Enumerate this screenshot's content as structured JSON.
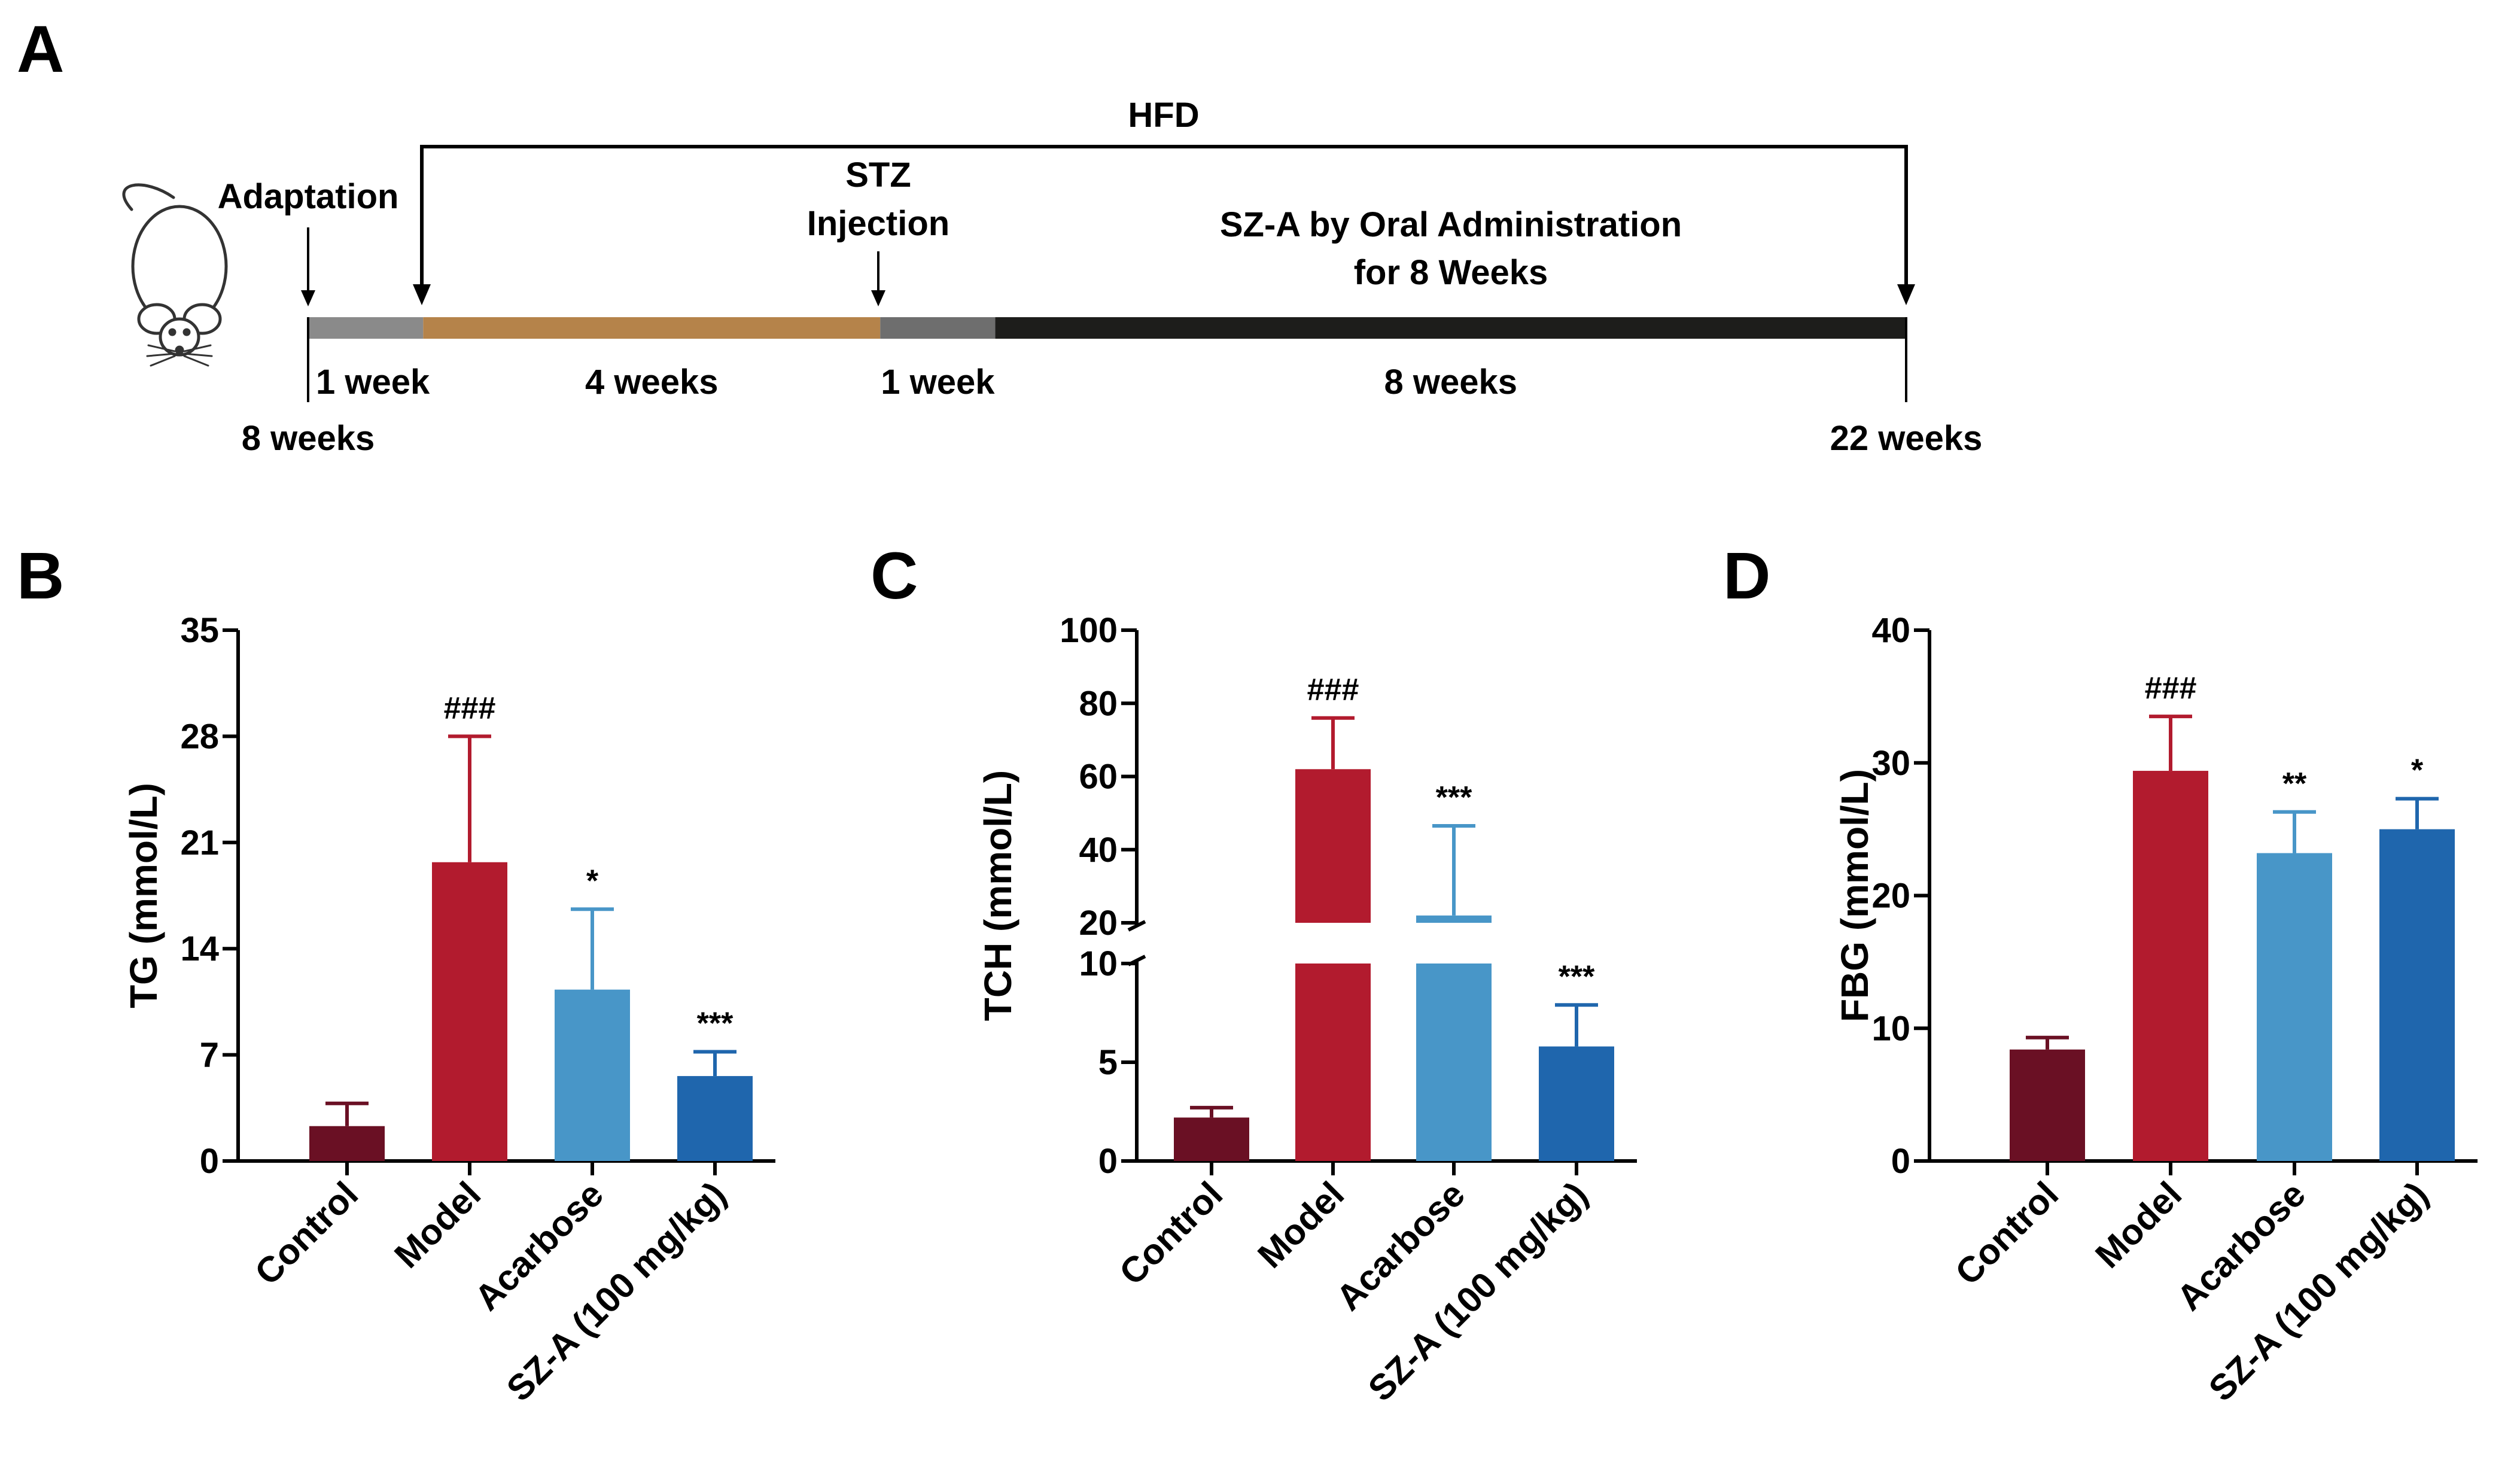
{
  "panel_a": {
    "letter": "A",
    "hfd_label": "HFD",
    "adaptation_label": "Adaptation",
    "stz_label_1": "STZ",
    "stz_label_2": "Injection",
    "sza_label_1": "SZ-A by Oral Administration",
    "sza_label_2": "for 8 Weeks",
    "segments": [
      {
        "label": "1 week",
        "weeks": 1,
        "color": "#8a8a8a"
      },
      {
        "label": "4 weeks",
        "weeks": 4,
        "color": "#b5834a"
      },
      {
        "label": "1 week",
        "weeks": 1,
        "color": "#6e6e6e"
      },
      {
        "label": "8 weeks",
        "weeks": 8,
        "color": "#1d1d1b"
      }
    ],
    "start_label": "8 weeks",
    "end_label": "22 weeks",
    "mouse_icon": "mouse-icon"
  },
  "chart_data": [
    {
      "letter": "B",
      "type": "bar",
      "ylabel": "TG (mmol/L)",
      "categories": [
        "Control",
        "Model",
        "Acarbose",
        "SZ-A (100 mg/kg)"
      ],
      "values": [
        2.3,
        19.7,
        11.3,
        5.6
      ],
      "errors": [
        1.5,
        8.3,
        5.3,
        1.6
      ],
      "annotations": [
        "",
        "###",
        "*",
        "***"
      ],
      "colors": [
        "#6a1024",
        "#b21b2e",
        "#4896c8",
        "#1f66ad"
      ],
      "ylim": [
        0,
        35
      ],
      "yticks": [
        0,
        7,
        14,
        21,
        28,
        35
      ],
      "broken_axis": null
    },
    {
      "letter": "C",
      "type": "bar",
      "ylabel": "TCH (mmol/L)",
      "categories": [
        "Control",
        "Model",
        "Acarbose",
        "SZ-A (100 mg/kg)"
      ],
      "values": [
        2.2,
        62,
        22,
        5.8
      ],
      "errors": [
        0.5,
        14,
        24.5,
        2.1
      ],
      "annotations": [
        "",
        "###",
        "***",
        "***"
      ],
      "colors": [
        "#6a1024",
        "#b21b2e",
        "#4896c8",
        "#1f66ad"
      ],
      "ylim": [
        0,
        100
      ],
      "yticks": [
        0,
        5,
        10,
        20,
        40,
        60,
        80,
        100
      ],
      "broken_axis": {
        "lower": [
          0,
          10
        ],
        "upper": [
          20,
          100
        ]
      }
    },
    {
      "letter": "D",
      "type": "bar",
      "ylabel": "FBG (mmol/L)",
      "categories": [
        "Control",
        "Model",
        "Acarbose",
        "SZ-A (100 mg/kg)"
      ],
      "values": [
        8.4,
        29.4,
        23.2,
        25
      ],
      "errors": [
        0.9,
        4.1,
        3.1,
        2.3
      ],
      "annotations": [
        "",
        "###",
        "**",
        "*"
      ],
      "colors": [
        "#6a1024",
        "#b21b2e",
        "#4896c8",
        "#1f66ad"
      ],
      "ylim": [
        0,
        40
      ],
      "yticks": [
        0,
        10,
        20,
        30,
        40
      ],
      "broken_axis": null
    }
  ]
}
